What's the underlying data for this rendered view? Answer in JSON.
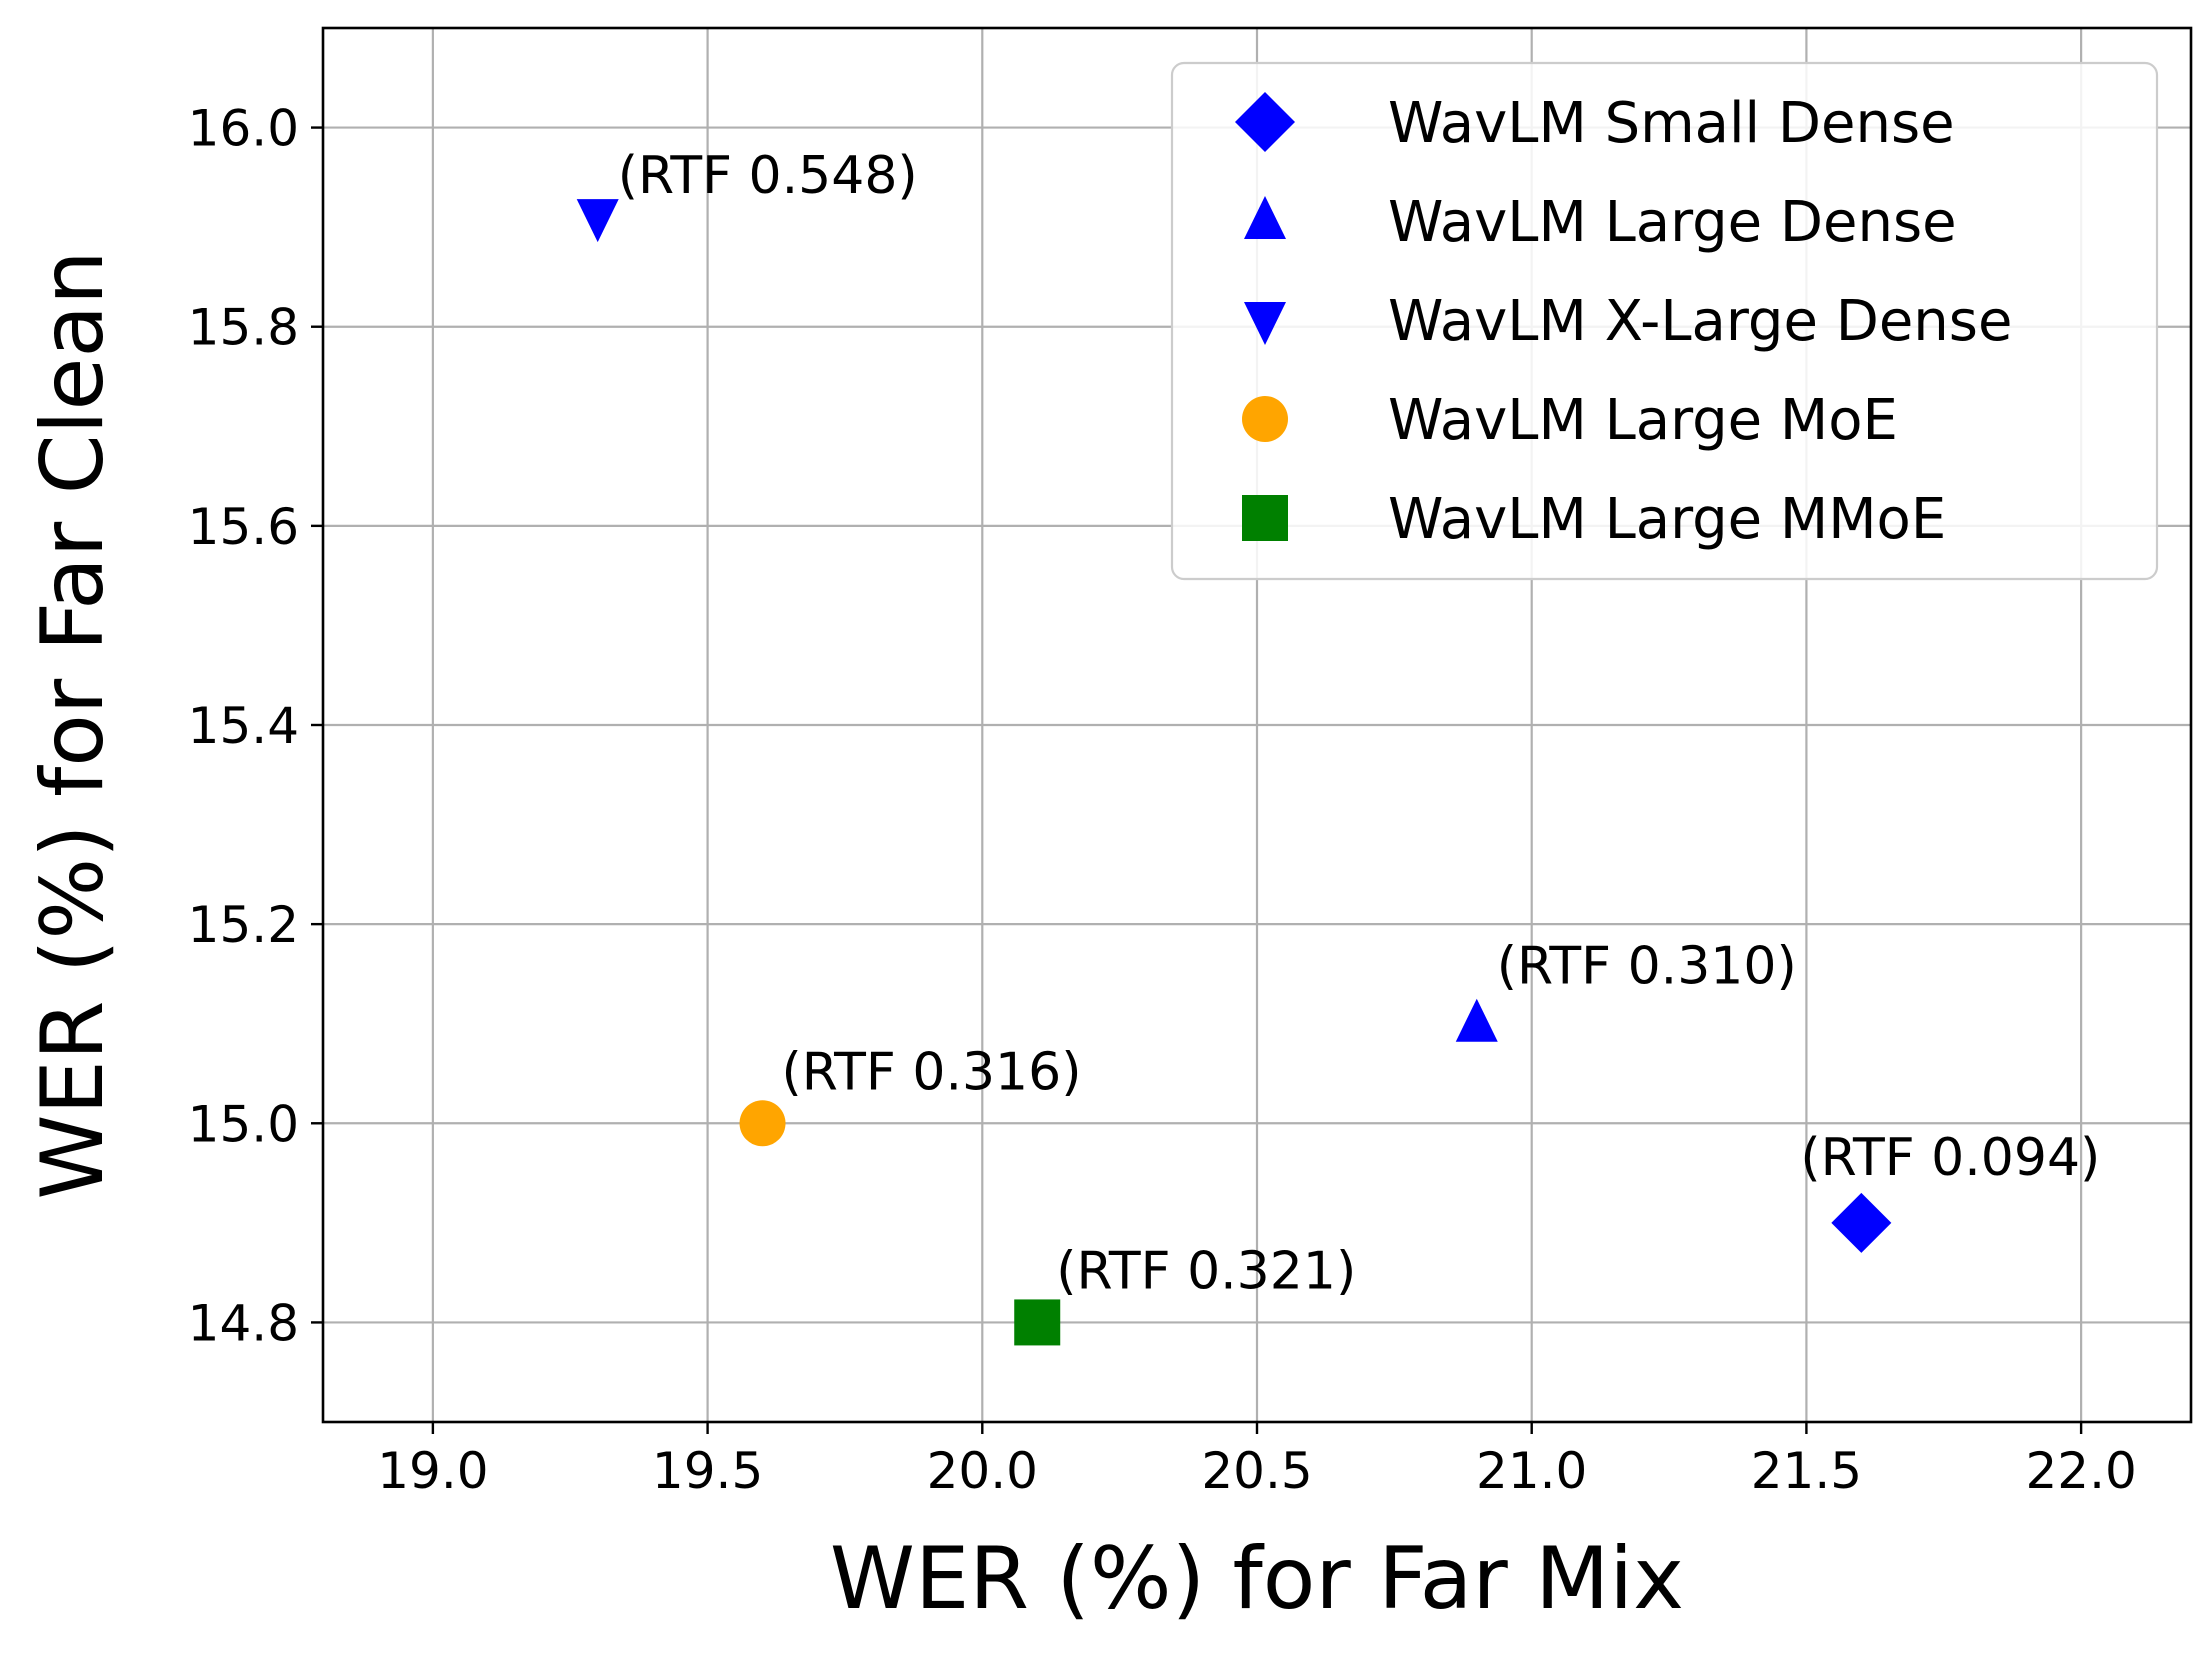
{
  "chart_data": {
    "type": "scatter",
    "title": "",
    "xlabel": "WER (%) for Far Mix",
    "ylabel": "WER (%) for Far Clean",
    "xlim": [
      18.8,
      22.2
    ],
    "ylim": [
      14.7,
      16.1
    ],
    "xticks": [
      19.0,
      19.5,
      20.0,
      20.5,
      21.0,
      21.5,
      22.0
    ],
    "yticks": [
      14.8,
      15.0,
      15.2,
      15.4,
      15.6,
      15.8,
      16.0
    ],
    "xtick_labels": [
      "19.0",
      "19.5",
      "20.0",
      "20.5",
      "21.0",
      "21.5",
      "22.0"
    ],
    "ytick_labels": [
      "14.8",
      "15.0",
      "15.2",
      "15.4",
      "15.6",
      "15.8",
      "16.0"
    ],
    "grid": true,
    "legend_position": "top-right",
    "series": [
      {
        "name": "WavLM Small Dense",
        "marker": "diamond",
        "color": "#0000ff",
        "x": 21.6,
        "y": 14.9,
        "annotation": "(RTF 0.094)"
      },
      {
        "name": "WavLM Large Dense",
        "marker": "triangle-up",
        "color": "#0000ff",
        "x": 20.9,
        "y": 15.1,
        "annotation": "(RTF 0.310)"
      },
      {
        "name": "WavLM X-Large Dense",
        "marker": "triangle-down",
        "color": "#0000ff",
        "x": 19.3,
        "y": 15.91,
        "annotation": "(RTF 0.548)"
      },
      {
        "name": "WavLM Large MoE",
        "marker": "circle",
        "color": "#ffa500",
        "x": 19.6,
        "y": 15.0,
        "annotation": "(RTF 0.316)"
      },
      {
        "name": "WavLM Large MMoE",
        "marker": "square",
        "color": "#008000",
        "x": 20.1,
        "y": 14.8,
        "annotation": "(RTF 0.321)"
      }
    ]
  }
}
